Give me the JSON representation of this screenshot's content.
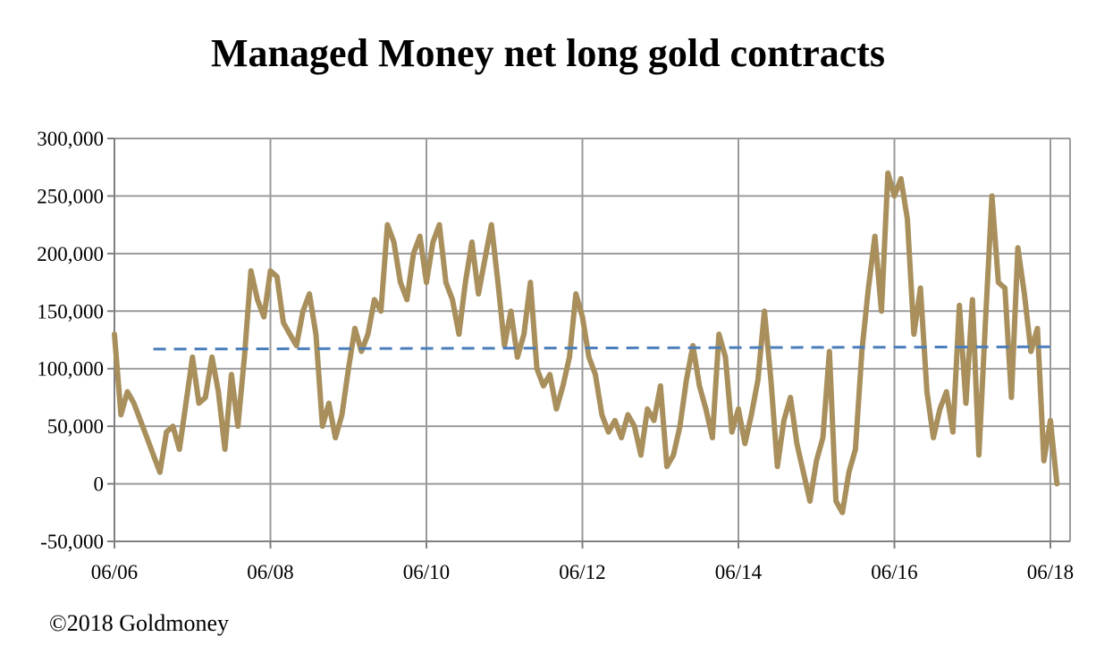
{
  "chart_data": {
    "type": "line",
    "title": "Managed Money net long gold contracts",
    "xlabel": "",
    "ylabel": "",
    "x_ticks": [
      "06/06",
      "06/08",
      "06/10",
      "06/12",
      "06/14",
      "06/16",
      "06/18"
    ],
    "y_ticks": [
      "300,000",
      "250,000",
      "200,000",
      "150,000",
      "100,000",
      "50,000",
      "0",
      "-50,000"
    ],
    "ylim": [
      -50000,
      300000
    ],
    "xlim": [
      "2006-06",
      "2018-06"
    ],
    "grid": true,
    "legend": "none",
    "series": [
      {
        "style": "solid",
        "color": "#A88F5C",
        "points": [
          [
            "2006-06",
            130000
          ],
          [
            "2006-07",
            60000
          ],
          [
            "2006-08",
            80000
          ],
          [
            "2006-09",
            70000
          ],
          [
            "2006-10",
            55000
          ],
          [
            "2006-11",
            40000
          ],
          [
            "2006-12",
            25000
          ],
          [
            "2007-01",
            10000
          ],
          [
            "2007-02",
            45000
          ],
          [
            "2007-03",
            50000
          ],
          [
            "2007-04",
            30000
          ],
          [
            "2007-05",
            70000
          ],
          [
            "2007-06",
            110000
          ],
          [
            "2007-07",
            70000
          ],
          [
            "2007-08",
            75000
          ],
          [
            "2007-09",
            110000
          ],
          [
            "2007-10",
            80000
          ],
          [
            "2007-11",
            30000
          ],
          [
            "2007-12",
            95000
          ],
          [
            "2008-01",
            50000
          ],
          [
            "2008-02",
            110000
          ],
          [
            "2008-03",
            185000
          ],
          [
            "2008-04",
            160000
          ],
          [
            "2008-05",
            145000
          ],
          [
            "2008-06",
            185000
          ],
          [
            "2008-07",
            180000
          ],
          [
            "2008-08",
            140000
          ],
          [
            "2008-09",
            130000
          ],
          [
            "2008-10",
            120000
          ],
          [
            "2008-11",
            150000
          ],
          [
            "2008-12",
            165000
          ],
          [
            "2009-01",
            130000
          ],
          [
            "2009-02",
            50000
          ],
          [
            "2009-03",
            70000
          ],
          [
            "2009-04",
            40000
          ],
          [
            "2009-05",
            60000
          ],
          [
            "2009-06",
            100000
          ],
          [
            "2009-07",
            135000
          ],
          [
            "2009-08",
            115000
          ],
          [
            "2009-09",
            130000
          ],
          [
            "2009-10",
            160000
          ],
          [
            "2009-11",
            150000
          ],
          [
            "2009-12",
            225000
          ],
          [
            "2010-01",
            210000
          ],
          [
            "2010-02",
            175000
          ],
          [
            "2010-03",
            160000
          ],
          [
            "2010-04",
            200000
          ],
          [
            "2010-05",
            215000
          ],
          [
            "2010-06",
            175000
          ],
          [
            "2010-07",
            210000
          ],
          [
            "2010-08",
            225000
          ],
          [
            "2010-09",
            175000
          ],
          [
            "2010-10",
            160000
          ],
          [
            "2010-11",
            130000
          ],
          [
            "2010-12",
            175000
          ],
          [
            "2011-01",
            210000
          ],
          [
            "2011-02",
            165000
          ],
          [
            "2011-03",
            195000
          ],
          [
            "2011-04",
            225000
          ],
          [
            "2011-05",
            175000
          ],
          [
            "2011-06",
            120000
          ],
          [
            "2011-07",
            150000
          ],
          [
            "2011-08",
            110000
          ],
          [
            "2011-09",
            130000
          ],
          [
            "2011-10",
            175000
          ],
          [
            "2011-11",
            100000
          ],
          [
            "2011-12",
            85000
          ],
          [
            "2012-01",
            95000
          ],
          [
            "2012-02",
            65000
          ],
          [
            "2012-03",
            85000
          ],
          [
            "2012-04",
            110000
          ],
          [
            "2012-05",
            165000
          ],
          [
            "2012-06",
            145000
          ],
          [
            "2012-07",
            110000
          ],
          [
            "2012-08",
            95000
          ],
          [
            "2012-09",
            60000
          ],
          [
            "2012-10",
            45000
          ],
          [
            "2012-11",
            55000
          ],
          [
            "2012-12",
            40000
          ],
          [
            "2013-01",
            60000
          ],
          [
            "2013-02",
            50000
          ],
          [
            "2013-03",
            25000
          ],
          [
            "2013-04",
            65000
          ],
          [
            "2013-05",
            55000
          ],
          [
            "2013-06",
            85000
          ],
          [
            "2013-07",
            15000
          ],
          [
            "2013-08",
            25000
          ],
          [
            "2013-09",
            50000
          ],
          [
            "2013-10",
            90000
          ],
          [
            "2013-11",
            120000
          ],
          [
            "2013-12",
            85000
          ],
          [
            "2014-01",
            65000
          ],
          [
            "2014-02",
            40000
          ],
          [
            "2014-03",
            130000
          ],
          [
            "2014-04",
            110000
          ],
          [
            "2014-05",
            45000
          ],
          [
            "2014-06",
            65000
          ],
          [
            "2014-07",
            35000
          ],
          [
            "2014-08",
            60000
          ],
          [
            "2014-09",
            90000
          ],
          [
            "2014-10",
            150000
          ],
          [
            "2014-11",
            90000
          ],
          [
            "2014-12",
            15000
          ],
          [
            "2015-01",
            55000
          ],
          [
            "2015-02",
            75000
          ],
          [
            "2015-03",
            35000
          ],
          [
            "2015-04",
            10000
          ],
          [
            "2015-05",
            -15000
          ],
          [
            "2015-06",
            20000
          ],
          [
            "2015-07",
            40000
          ],
          [
            "2015-08",
            115000
          ],
          [
            "2015-09",
            -15000
          ],
          [
            "2015-10",
            -25000
          ],
          [
            "2015-11",
            10000
          ],
          [
            "2015-12",
            30000
          ],
          [
            "2016-01",
            115000
          ],
          [
            "2016-02",
            170000
          ],
          [
            "2016-03",
            215000
          ],
          [
            "2016-04",
            150000
          ],
          [
            "2016-05",
            270000
          ],
          [
            "2016-06",
            250000
          ],
          [
            "2016-07",
            265000
          ],
          [
            "2016-08",
            230000
          ],
          [
            "2016-09",
            130000
          ],
          [
            "2016-10",
            170000
          ],
          [
            "2016-11",
            80000
          ],
          [
            "2016-12",
            40000
          ],
          [
            "2017-01",
            65000
          ],
          [
            "2017-02",
            80000
          ],
          [
            "2017-03",
            45000
          ],
          [
            "2017-04",
            155000
          ],
          [
            "2017-05",
            70000
          ],
          [
            "2017-06",
            160000
          ],
          [
            "2017-07",
            25000
          ],
          [
            "2017-08",
            140000
          ],
          [
            "2017-09",
            250000
          ],
          [
            "2017-10",
            175000
          ],
          [
            "2017-11",
            170000
          ],
          [
            "2017-12",
            75000
          ],
          [
            "2018-01",
            205000
          ],
          [
            "2018-02",
            165000
          ],
          [
            "2018-03",
            115000
          ],
          [
            "2018-04",
            135000
          ],
          [
            "2018-05",
            20000
          ],
          [
            "2018-06",
            55000
          ],
          [
            "2018-07",
            0
          ]
        ]
      },
      {
        "style": "dashed",
        "color": "#4A7EBB",
        "points": [
          [
            "2006-12",
            117000
          ],
          [
            "2018-07",
            119000
          ]
        ]
      }
    ]
  },
  "footer": {
    "copyright": "©2018 Goldmoney"
  }
}
